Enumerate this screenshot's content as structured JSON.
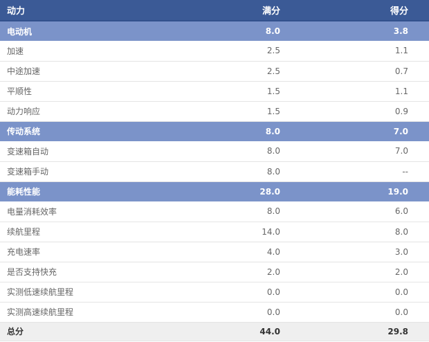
{
  "table": {
    "title": "动力",
    "columns": [
      {
        "label": "动力"
      },
      {
        "label": "满分"
      },
      {
        "label": "得分"
      }
    ],
    "rows": [
      {
        "label": "电动机",
        "full": "8.0",
        "score": "3.8",
        "type": "section"
      },
      {
        "label": "加速",
        "full": "2.5",
        "score": "1.1",
        "type": "data"
      },
      {
        "label": "中途加速",
        "full": "2.5",
        "score": "0.7",
        "type": "data"
      },
      {
        "label": "平顺性",
        "full": "1.5",
        "score": "1.1",
        "type": "data"
      },
      {
        "label": "动力响应",
        "full": "1.5",
        "score": "0.9",
        "type": "data"
      },
      {
        "label": "传动系统",
        "full": "8.0",
        "score": "7.0",
        "type": "section"
      },
      {
        "label": "变速箱自动",
        "full": "8.0",
        "score": "7.0",
        "type": "data"
      },
      {
        "label": "变速箱手动",
        "full": "8.0",
        "score": "--",
        "type": "data"
      },
      {
        "label": "能耗性能",
        "full": "28.0",
        "score": "19.0",
        "type": "section"
      },
      {
        "label": "电量消耗效率",
        "full": "8.0",
        "score": "6.0",
        "type": "data"
      },
      {
        "label": "续航里程",
        "full": "14.0",
        "score": "8.0",
        "type": "data"
      },
      {
        "label": "充电速率",
        "full": "4.0",
        "score": "3.0",
        "type": "data"
      },
      {
        "label": "是否支持快充",
        "full": "2.0",
        "score": "2.0",
        "type": "data"
      },
      {
        "label": "实测低速续航里程",
        "full": "0.0",
        "score": "0.0",
        "type": "data"
      },
      {
        "label": "实测高速续航里程",
        "full": "0.0",
        "score": "0.0",
        "type": "data"
      },
      {
        "label": "总分",
        "full": "44.0",
        "score": "29.8",
        "type": "total"
      }
    ],
    "colors": {
      "header_bg": "#3b5a96",
      "header_border": "#32508c",
      "section_bg": "#7b93c9",
      "total_bg": "#efefef",
      "row_border": "#e4e4e4",
      "data_text": "#666666",
      "total_text": "#333333"
    }
  }
}
